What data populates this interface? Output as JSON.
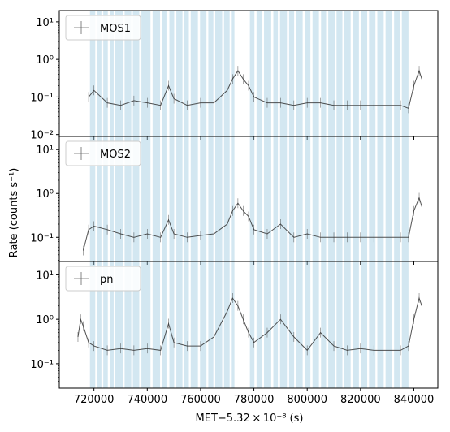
{
  "chart_data": {
    "type": "line",
    "ylabel": "Rate (counts s⁻¹)",
    "xlabel": "MET−5.32 × 10⁻⁸ (s)",
    "xlim": [
      707000,
      849000
    ],
    "x_ticks": [
      720000,
      740000,
      760000,
      780000,
      800000,
      820000,
      840000
    ],
    "x_tick_labels": [
      "720000",
      "740000",
      "760000",
      "780000",
      "800000",
      "820000",
      "840000"
    ],
    "legend_location": "upper left",
    "shaded_band_color": "#9ecae1",
    "line_color": "#333333",
    "panels": [
      {
        "legend": "MOS1",
        "ylim_log10": [
          -2.05,
          1.3
        ],
        "y_ticks": [
          -2,
          -1,
          0,
          1
        ],
        "y_tick_labels": [
          "10⁻²",
          "10⁻¹",
          "10⁰",
          "10¹"
        ],
        "x": [
          718000,
          720000,
          725000,
          730000,
          735000,
          740000,
          745000,
          748000,
          750000,
          755000,
          760000,
          765000,
          770000,
          772000,
          774000,
          776000,
          778000,
          780000,
          785000,
          790000,
          795000,
          800000,
          805000,
          810000,
          815000,
          820000,
          825000,
          830000,
          835000,
          838000,
          840000,
          842000,
          843000
        ],
        "y": [
          0.1,
          0.15,
          0.07,
          0.06,
          0.08,
          0.07,
          0.06,
          0.2,
          0.09,
          0.06,
          0.07,
          0.07,
          0.15,
          0.3,
          0.5,
          0.3,
          0.2,
          0.1,
          0.07,
          0.07,
          0.06,
          0.07,
          0.07,
          0.06,
          0.06,
          0.06,
          0.06,
          0.06,
          0.06,
          0.05,
          0.2,
          0.5,
          0.3
        ]
      },
      {
        "legend": "MOS2",
        "ylim_log10": [
          -1.55,
          1.3
        ],
        "y_ticks": [
          -1,
          0,
          1
        ],
        "y_tick_labels": [
          "10⁻¹",
          "10⁰",
          "10¹"
        ],
        "x": [
          716000,
          718000,
          720000,
          725000,
          730000,
          735000,
          740000,
          745000,
          748000,
          750000,
          755000,
          760000,
          765000,
          770000,
          772000,
          774000,
          776000,
          778000,
          780000,
          785000,
          790000,
          795000,
          800000,
          805000,
          810000,
          815000,
          820000,
          825000,
          830000,
          835000,
          838000,
          840000,
          842000,
          843000
        ],
        "y": [
          0.05,
          0.15,
          0.18,
          0.15,
          0.12,
          0.1,
          0.12,
          0.1,
          0.25,
          0.12,
          0.1,
          0.11,
          0.12,
          0.2,
          0.4,
          0.6,
          0.4,
          0.3,
          0.15,
          0.12,
          0.2,
          0.1,
          0.12,
          0.1,
          0.1,
          0.1,
          0.1,
          0.1,
          0.1,
          0.1,
          0.1,
          0.4,
          0.8,
          0.5
        ]
      },
      {
        "legend": "pn",
        "ylim_log10": [
          -1.55,
          1.3
        ],
        "y_ticks": [
          -1,
          0,
          1
        ],
        "y_tick_labels": [
          "10⁻¹",
          "10⁰",
          "10¹"
        ],
        "x": [
          714000,
          715000,
          716000,
          718000,
          720000,
          725000,
          730000,
          735000,
          740000,
          745000,
          748000,
          750000,
          755000,
          760000,
          765000,
          770000,
          772000,
          774000,
          776000,
          778000,
          780000,
          785000,
          790000,
          795000,
          800000,
          805000,
          810000,
          815000,
          820000,
          825000,
          830000,
          835000,
          838000,
          840000,
          842000,
          843000
        ],
        "y": [
          0.4,
          1.0,
          0.7,
          0.3,
          0.25,
          0.2,
          0.22,
          0.2,
          0.22,
          0.2,
          0.8,
          0.3,
          0.25,
          0.25,
          0.4,
          1.5,
          3.0,
          2.0,
          1.0,
          0.5,
          0.3,
          0.5,
          1.0,
          0.4,
          0.2,
          0.5,
          0.25,
          0.2,
          0.22,
          0.2,
          0.2,
          0.2,
          0.25,
          1.0,
          3.0,
          2.0
        ]
      }
    ],
    "shaded_intervals": [
      [
        718500,
        720500
      ],
      [
        721200,
        722800
      ],
      [
        723500,
        725200
      ],
      [
        726000,
        727400
      ],
      [
        728000,
        730800
      ],
      [
        731500,
        734000
      ],
      [
        734600,
        737000
      ],
      [
        737800,
        741200
      ],
      [
        742000,
        744800
      ],
      [
        745400,
        747200
      ],
      [
        748300,
        750100
      ],
      [
        750900,
        753200
      ],
      [
        753800,
        755600
      ],
      [
        756300,
        759000
      ],
      [
        759800,
        762200
      ],
      [
        762900,
        764800
      ],
      [
        765500,
        768100
      ],
      [
        768800,
        770900
      ],
      [
        771700,
        772700
      ],
      [
        778500,
        780200
      ],
      [
        781000,
        783100
      ],
      [
        783800,
        786500
      ],
      [
        787300,
        789000
      ],
      [
        789800,
        792400
      ],
      [
        793200,
        795100
      ],
      [
        795800,
        798300
      ],
      [
        799100,
        801200
      ],
      [
        802000,
        804400
      ],
      [
        805200,
        807100
      ],
      [
        807900,
        810300
      ],
      [
        811000,
        813200
      ],
      [
        813900,
        816300
      ],
      [
        817100,
        819400
      ],
      [
        820100,
        822500
      ],
      [
        823200,
        825600
      ],
      [
        826300,
        828700
      ],
      [
        829400,
        831900
      ],
      [
        832600,
        834800
      ],
      [
        835500,
        838000
      ]
    ]
  }
}
